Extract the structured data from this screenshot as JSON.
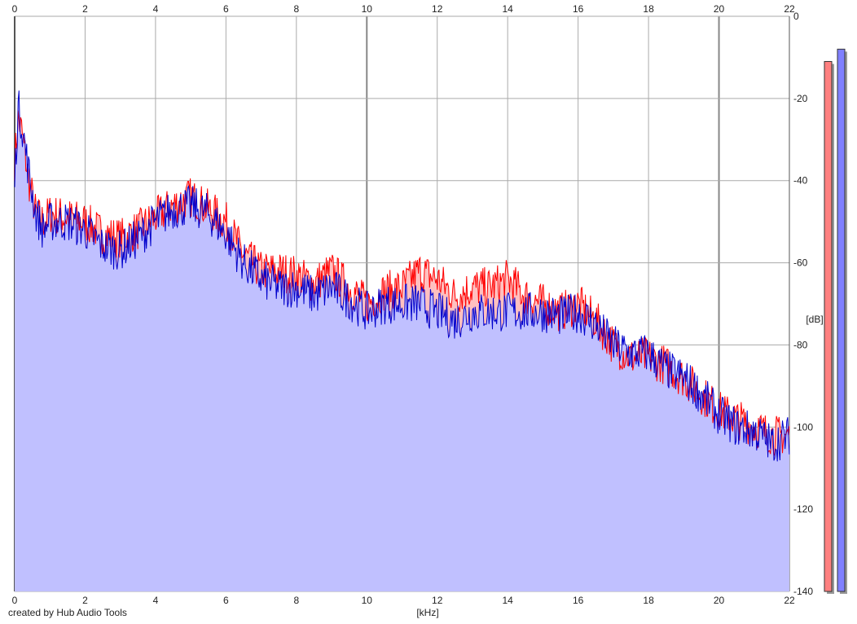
{
  "chart_data": {
    "type": "area",
    "title": "",
    "xlabel": "[kHz]",
    "ylabel": "[dB]",
    "xlim": [
      0,
      22
    ],
    "ylim": [
      -140,
      0
    ],
    "x_ticks": [
      0,
      2,
      4,
      6,
      8,
      10,
      12,
      14,
      16,
      18,
      20,
      22
    ],
    "y_ticks": [
      0,
      -20,
      -40,
      -60,
      -80,
      -100,
      -120,
      -140
    ],
    "grid": true,
    "series": [
      {
        "color": "#ff0000",
        "fill": "#ffc0c0",
        "x": [
          0,
          0.1,
          0.2,
          0.4,
          0.6,
          0.8,
          1,
          1.5,
          2,
          2.5,
          3,
          3.5,
          4,
          4.5,
          5,
          5.5,
          6,
          6.5,
          7,
          7.5,
          8,
          8.5,
          9,
          9.5,
          10,
          10.5,
          11,
          11.5,
          12,
          12.5,
          13,
          13.5,
          14,
          14.5,
          15,
          15.5,
          16,
          16.5,
          17,
          17.5,
          18,
          18.5,
          19,
          19.5,
          20,
          20.5,
          21,
          21.5,
          22
        ],
        "values": [
          -35,
          -25,
          -28,
          -40,
          -48,
          -50,
          -48,
          -49,
          -50,
          -53,
          -54,
          -52,
          -49,
          -46,
          -44,
          -47,
          -50,
          -58,
          -62,
          -62,
          -63,
          -65,
          -62,
          -66,
          -70,
          -67,
          -66,
          -62,
          -64,
          -68,
          -66,
          -66,
          -64,
          -68,
          -70,
          -72,
          -70,
          -74,
          -80,
          -83,
          -83,
          -85,
          -88,
          -92,
          -96,
          -98,
          -100,
          -102,
          -102
        ]
      },
      {
        "color": "#0000cc",
        "fill": "#c0c0ff",
        "x": [
          0,
          0.1,
          0.2,
          0.4,
          0.6,
          0.8,
          1,
          1.5,
          2,
          2.5,
          3,
          3.5,
          4,
          4.5,
          5,
          5.5,
          6,
          6.5,
          7,
          7.5,
          8,
          8.5,
          9,
          9.5,
          10,
          10.5,
          11,
          11.5,
          12,
          12.5,
          13,
          13.5,
          14,
          14.5,
          15,
          15.5,
          16,
          16.5,
          17,
          17.5,
          18,
          18.5,
          19,
          19.5,
          20,
          20.5,
          21,
          21.5,
          22
        ],
        "values": [
          -40,
          -22,
          -26,
          -38,
          -48,
          -52,
          -50,
          -50,
          -52,
          -56,
          -57,
          -54,
          -50,
          -47,
          -46,
          -48,
          -53,
          -60,
          -64,
          -66,
          -66,
          -68,
          -66,
          -69,
          -72,
          -70,
          -70,
          -70,
          -72,
          -74,
          -72,
          -72,
          -72,
          -72,
          -72,
          -73,
          -72,
          -75,
          -80,
          -82,
          -82,
          -86,
          -88,
          -92,
          -97,
          -100,
          -101,
          -104,
          -102
        ]
      }
    ],
    "level_meters": [
      {
        "color": "#ff8080",
        "level_db": -11
      },
      {
        "color": "#8080ff",
        "level_db": -8
      }
    ]
  },
  "footer": {
    "credit": "created by Hub Audio Tools"
  }
}
